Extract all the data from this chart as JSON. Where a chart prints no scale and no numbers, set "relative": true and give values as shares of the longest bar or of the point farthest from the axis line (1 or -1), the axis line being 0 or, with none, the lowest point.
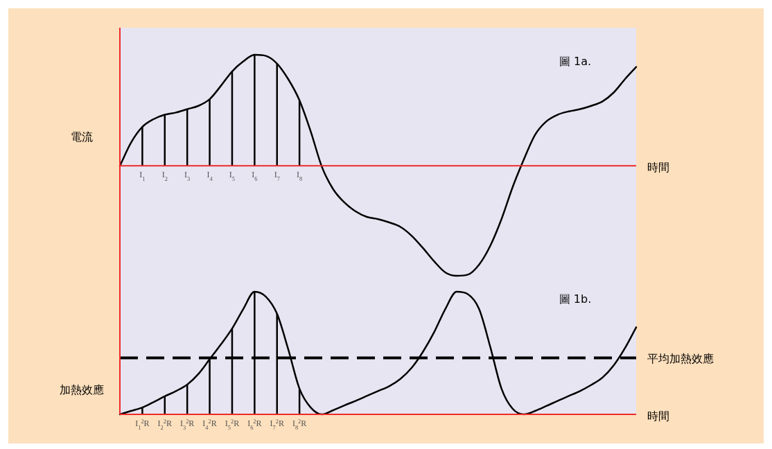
{
  "chart_data": [
    {
      "type": "line",
      "relative": true,
      "ylabel": "電流",
      "xlabel": "時間",
      "annotations": [
        "圖 1a."
      ],
      "grid": false,
      "legend": false,
      "categories": [
        null,
        null,
        "I$_{1}$",
        null,
        "I$_{2}$",
        null,
        "I$_{3}$",
        null,
        "I$_{4}$",
        null,
        "I$_{5}$",
        null,
        "I$_{6}$",
        null,
        "I$_{7}$",
        null,
        "I$_{8}$",
        null,
        null,
        null,
        null,
        null,
        null,
        null,
        null,
        null,
        null,
        null,
        null,
        null,
        null,
        null,
        null,
        null,
        null,
        null,
        null,
        null,
        null,
        null,
        null,
        null,
        null,
        null,
        null,
        null,
        null
      ],
      "series": [
        {
          "color": "#000000",
          "values": [
            0,
            0.21,
            0.35,
            0.42,
            0.46,
            0.48,
            0.51,
            0.54,
            0.6,
            0.72,
            0.85,
            0.94,
            1,
            0.99,
            0.92,
            0.78,
            0.59,
            0.31,
            -0.01,
            -0.21,
            -0.33,
            -0.41,
            -0.46,
            -0.48,
            -0.51,
            -0.55,
            -0.63,
            -0.74,
            -0.86,
            -0.96,
            -0.99,
            -0.98,
            -0.89,
            -0.72,
            -0.48,
            -0.19,
            0.06,
            0.28,
            0.4,
            0.46,
            0.49,
            0.51,
            0.54,
            0.58,
            0.66,
            0.78,
            0.89
          ]
        },
        {
          "type": "bar",
          "color": "#000000",
          "values": [
            null,
            null,
            0.35,
            null,
            0.46,
            null,
            0.51,
            null,
            0.6,
            null,
            0.85,
            null,
            1,
            null,
            0.92,
            null,
            0.59,
            null,
            null,
            null,
            null,
            null,
            null,
            null,
            null,
            null,
            null,
            null,
            null,
            null,
            null,
            null,
            null,
            null,
            null,
            null,
            null,
            null,
            null,
            null,
            null,
            null,
            null,
            null,
            null,
            null,
            null
          ]
        }
      ]
    },
    {
      "type": "line",
      "relative": true,
      "ylabel": "加熱效應",
      "xlabel": "時間",
      "annotations": [
        "圖 1b."
      ],
      "grid": false,
      "legend": false,
      "categories": [
        null,
        null,
        "I$_{1}$$^{2}$R",
        null,
        "I$_{2}$$^{2}$R",
        null,
        "I$_{3}$$^{2}$R",
        null,
        "I$_{4}$$^{2}$R",
        null,
        "I$_{5}$$^{2}$R",
        null,
        "I$_{6}$$^{2}$R",
        null,
        "I$_{7}$$^{2}$R",
        null,
        "I$_{8}$$^{2}$R",
        null,
        null,
        null,
        null,
        null,
        null,
        null,
        null,
        null,
        null,
        null,
        null,
        null,
        null,
        null,
        null,
        null,
        null,
        null,
        null,
        null,
        null,
        null,
        null,
        null,
        null,
        null,
        null,
        null,
        null
      ],
      "ref_lines": [
        {
          "axis": "y",
          "value": 0.46,
          "label": "平均加熱效應",
          "color": "#000000",
          "line_style": "dashed"
        }
      ],
      "series": [
        {
          "color": "#000000",
          "values": [
            0,
            0.028,
            0.056,
            0.1,
            0.147,
            0.19,
            0.243,
            0.33,
            0.45,
            0.57,
            0.7,
            0.86,
            1,
            0.96,
            0.82,
            0.53,
            0.21,
            0.056,
            0,
            0.034,
            0.073,
            0.11,
            0.15,
            0.19,
            0.23,
            0.29,
            0.38,
            0.51,
            0.67,
            0.86,
            1,
            0.98,
            0.86,
            0.55,
            0.21,
            0.045,
            0,
            0.028,
            0.068,
            0.11,
            0.15,
            0.19,
            0.24,
            0.3,
            0.4,
            0.54,
            0.71
          ]
        },
        {
          "type": "bar",
          "color": "#000000",
          "values": [
            null,
            null,
            0.056,
            null,
            0.147,
            null,
            0.243,
            null,
            0.45,
            null,
            0.7,
            null,
            1,
            null,
            0.82,
            null,
            0.21,
            null,
            null,
            null,
            null,
            null,
            null,
            null,
            null,
            null,
            null,
            null,
            null,
            null,
            null,
            null,
            null,
            null,
            null,
            null,
            null,
            null,
            null,
            null,
            null,
            null,
            null,
            null,
            null,
            null,
            null
          ]
        }
      ]
    }
  ]
}
